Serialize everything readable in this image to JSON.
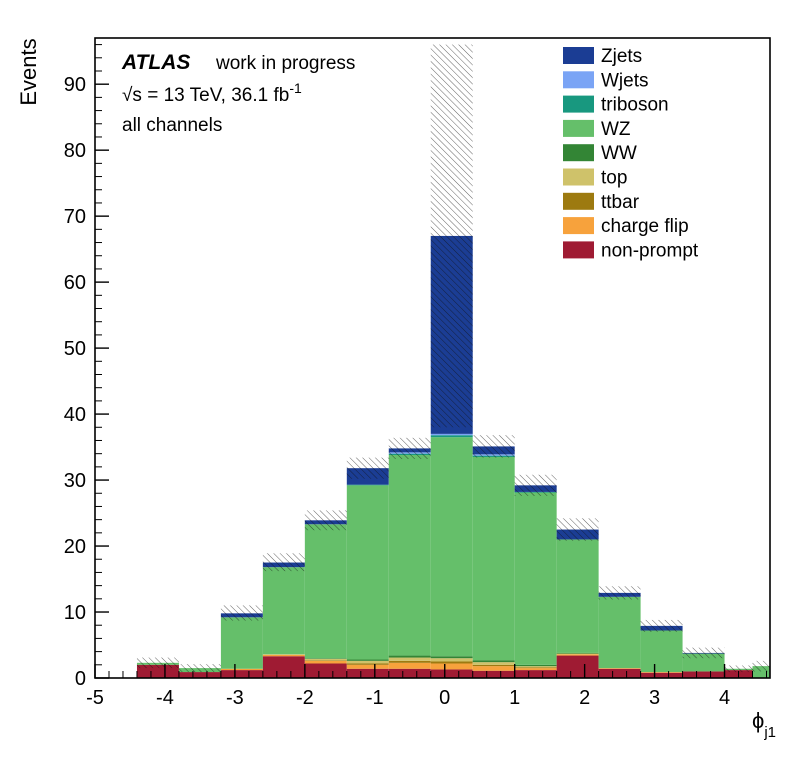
{
  "annotations": {
    "experiment": "ATLAS",
    "status": "work in progress",
    "energy_lumi": "√s = 13 TeV, 36.1 fb",
    "energy_lumi_sup": "-1",
    "channel": "all channels"
  },
  "axes": {
    "y_label": "Events",
    "x_label": "ϕ",
    "x_label_sub": "j1"
  },
  "chart_data": {
    "type": "bar",
    "stacked": true,
    "title": "",
    "xlabel": "phi_j1",
    "ylabel": "Events",
    "xlim": [
      -5,
      4.65
    ],
    "ylim": [
      0,
      97
    ],
    "grid": false,
    "legend_position": "top-right",
    "x_major_ticks": [
      -5,
      -4,
      -3,
      -2,
      -1,
      0,
      1,
      2,
      3,
      4
    ],
    "y_major_ticks": [
      0,
      10,
      20,
      30,
      40,
      50,
      60,
      70,
      80,
      90
    ],
    "x_minor_step": 0.2,
    "y_minor_step": 2,
    "bin_edges": [
      -4.4,
      -3.8,
      -3.2,
      -2.6,
      -2.0,
      -1.4,
      -0.8,
      -0.2,
      0.4,
      1.0,
      1.6,
      2.2,
      2.8,
      3.4,
      4.0,
      4.4,
      4.65
    ],
    "series": [
      {
        "name": "non-prompt",
        "color": "#9f1b33",
        "values": [
          2.0,
          0.9,
          1.2,
          3.3,
          2.2,
          1.4,
          1.4,
          1.3,
          1.1,
          1.2,
          3.4,
          1.4,
          0.8,
          1.0,
          1.2,
          0
        ]
      },
      {
        "name": "charge flip",
        "color": "#f7a23c",
        "values": [
          0,
          0,
          0.2,
          0.2,
          0.4,
          0.6,
          0.9,
          0.9,
          0.7,
          0.3,
          0.2,
          0.1,
          0.1,
          0,
          0,
          0
        ]
      },
      {
        "name": "ttbar",
        "color": "#9d7a10",
        "values": [
          0,
          0,
          0,
          0,
          0.1,
          0.2,
          0.3,
          0.3,
          0.2,
          0.1,
          0,
          0,
          0,
          0,
          0,
          0
        ]
      },
      {
        "name": "top",
        "color": "#cfc26a",
        "values": [
          0,
          0,
          0,
          0.1,
          0.2,
          0.4,
          0.5,
          0.5,
          0.4,
          0.2,
          0.1,
          0,
          0,
          0,
          0,
          0
        ]
      },
      {
        "name": "WW",
        "color": "#338535",
        "values": [
          0,
          0,
          0,
          0,
          0.1,
          0.2,
          0.3,
          0.3,
          0.3,
          0.2,
          0.1,
          0,
          0,
          0,
          0,
          0
        ]
      },
      {
        "name": "WZ",
        "color": "#65bf6a",
        "values": [
          0.3,
          0.6,
          7.8,
          13.2,
          20.3,
          26.4,
          30.4,
          33.2,
          30.8,
          26.1,
          17.2,
          10.8,
          6.3,
          2.7,
          0.2,
          1.8
        ]
      },
      {
        "name": "triboson",
        "color": "#18987f",
        "values": [
          0,
          0,
          0,
          0,
          0,
          0.1,
          0.2,
          0.3,
          0.2,
          0.1,
          0,
          0,
          0,
          0,
          0,
          0
        ]
      },
      {
        "name": "Wjets",
        "color": "#7aa4f5",
        "values": [
          0,
          0,
          0,
          0,
          0,
          0,
          0.2,
          0.2,
          0.2,
          0,
          0,
          0,
          0,
          0,
          0,
          0
        ]
      },
      {
        "name": "Zjets",
        "color": "#1b3d94",
        "values": [
          0,
          0,
          0.6,
          0.7,
          0.6,
          2.5,
          0.6,
          30.0,
          1.2,
          1.0,
          1.5,
          0.6,
          0.7,
          0.1,
          0,
          0
        ]
      }
    ],
    "error_band": {
      "style": "diagonal-hatch",
      "low": [
        1.5,
        0.9,
        8.7,
        16.2,
        22.4,
        30.2,
        33.2,
        38.0,
        33.4,
        27.6,
        20.8,
        11.9,
        7.0,
        3.0,
        0.9,
        1.0
      ],
      "high": [
        3.1,
        2.1,
        11.0,
        18.9,
        25.4,
        33.4,
        36.4,
        96.0,
        36.8,
        30.8,
        24.2,
        13.9,
        8.8,
        4.6,
        1.9,
        2.6
      ]
    }
  }
}
